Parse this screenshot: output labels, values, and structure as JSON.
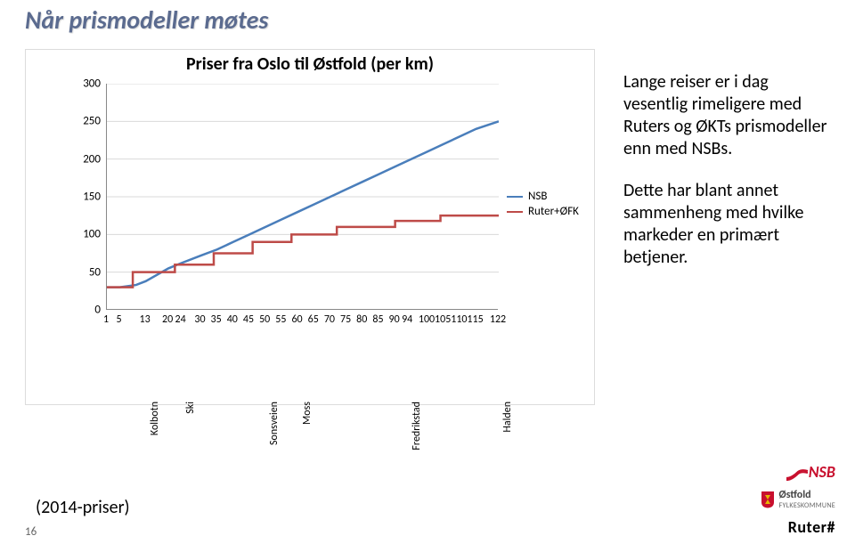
{
  "page": {
    "title": "Når prismodeller møtes",
    "footnote": "(2014-priser)",
    "number": "16"
  },
  "side_text": {
    "p1": "Lange reiser er i dag vesentlig rimeligere med Ruters og ØKTs prismodeller enn med NSBs.",
    "p2": "Dette har blant annet sammenheng med hvilke markeder en primært betjener."
  },
  "chart": {
    "type": "line",
    "title": "Priser fra Oslo til Østfold (per km)",
    "title_fontsize": 20,
    "background_color": "#ffffff",
    "grid_color": "#d9d9d9",
    "axis_color": "#888888",
    "xlim": [
      1,
      122
    ],
    "ylim": [
      0,
      300
    ],
    "ytick_step": 50,
    "yticks": [
      0,
      50,
      100,
      150,
      200,
      250,
      300
    ],
    "xticks": [
      1,
      5,
      20,
      30,
      35,
      40,
      45,
      55,
      65,
      70,
      75,
      80,
      85,
      90,
      100,
      105,
      110,
      115
    ],
    "station_labels": [
      {
        "x": 13,
        "label": "Kolbotn"
      },
      {
        "x": 24,
        "label": "Ski"
      },
      {
        "x": 50,
        "label": "Sonsveien"
      },
      {
        "x": 60,
        "label": "Moss"
      },
      {
        "x": 94,
        "label": "Fredrikstad"
      },
      {
        "x": 122,
        "label": "Halden"
      }
    ],
    "legend": {
      "items": [
        {
          "label": "NSB",
          "color": "#4a7ebb"
        },
        {
          "label": "Ruter+ØFK",
          "color": "#be4b48"
        }
      ]
    },
    "series": [
      {
        "name": "NSB",
        "type": "line",
        "color": "#4a7ebb",
        "line_width": 2.5,
        "points": [
          {
            "x": 1,
            "y": 30
          },
          {
            "x": 5,
            "y": 30
          },
          {
            "x": 10,
            "y": 33
          },
          {
            "x": 13,
            "y": 38
          },
          {
            "x": 20,
            "y": 55
          },
          {
            "x": 24,
            "y": 62
          },
          {
            "x": 30,
            "y": 72
          },
          {
            "x": 35,
            "y": 80
          },
          {
            "x": 40,
            "y": 90
          },
          {
            "x": 45,
            "y": 100
          },
          {
            "x": 50,
            "y": 110
          },
          {
            "x": 55,
            "y": 120
          },
          {
            "x": 60,
            "y": 130
          },
          {
            "x": 65,
            "y": 140
          },
          {
            "x": 70,
            "y": 150
          },
          {
            "x": 75,
            "y": 160
          },
          {
            "x": 80,
            "y": 170
          },
          {
            "x": 85,
            "y": 180
          },
          {
            "x": 90,
            "y": 190
          },
          {
            "x": 94,
            "y": 198
          },
          {
            "x": 100,
            "y": 210
          },
          {
            "x": 105,
            "y": 220
          },
          {
            "x": 110,
            "y": 230
          },
          {
            "x": 115,
            "y": 240
          },
          {
            "x": 122,
            "y": 250
          }
        ]
      },
      {
        "name": "Ruter+ØFK",
        "type": "step",
        "color": "#be4b48",
        "line_width": 2.5,
        "points": [
          {
            "x": 1,
            "y": 30
          },
          {
            "x": 9,
            "y": 30
          },
          {
            "x": 9,
            "y": 50
          },
          {
            "x": 22,
            "y": 50
          },
          {
            "x": 22,
            "y": 60
          },
          {
            "x": 34,
            "y": 60
          },
          {
            "x": 34,
            "y": 75
          },
          {
            "x": 46,
            "y": 75
          },
          {
            "x": 46,
            "y": 90
          },
          {
            "x": 58,
            "y": 90
          },
          {
            "x": 58,
            "y": 100
          },
          {
            "x": 72,
            "y": 100
          },
          {
            "x": 72,
            "y": 110
          },
          {
            "x": 90,
            "y": 110
          },
          {
            "x": 90,
            "y": 118
          },
          {
            "x": 104,
            "y": 118
          },
          {
            "x": 104,
            "y": 125
          },
          {
            "x": 122,
            "y": 125
          }
        ]
      }
    ]
  },
  "logos": {
    "nsb": {
      "text": "NSB",
      "color": "#c8102e"
    },
    "ostfold": {
      "line1": "Østfold",
      "line2": "FYLKESKOMMUNE",
      "shield_red": "#c8102e",
      "shield_gold": "#e6b800"
    },
    "ruter": {
      "text": "Ruter#",
      "color": "#000000"
    }
  }
}
